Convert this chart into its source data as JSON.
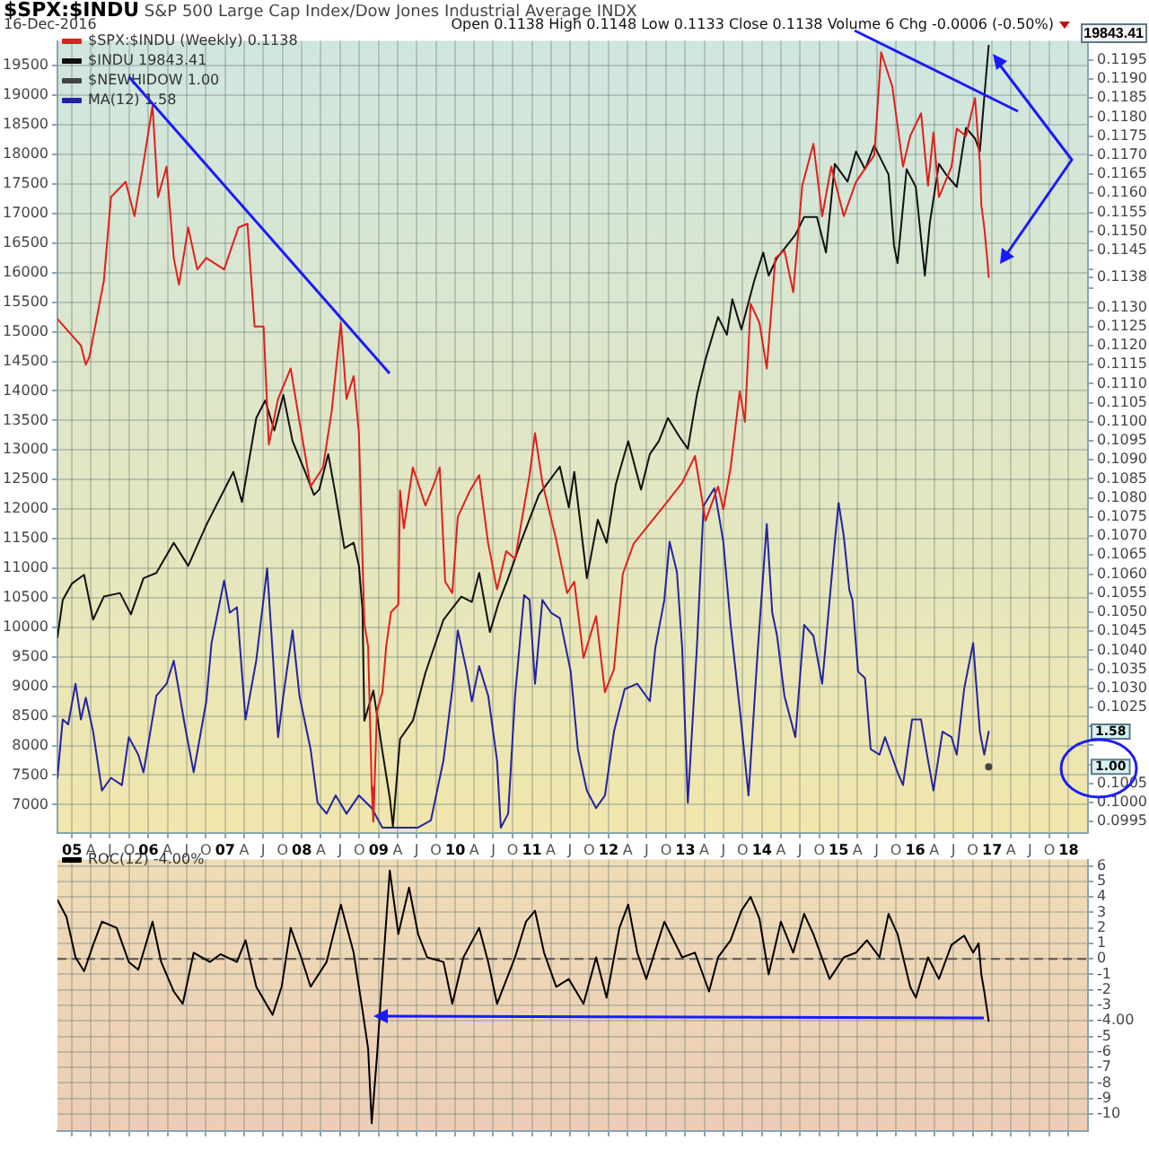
{
  "chart_data": [
    {
      "type": "line",
      "title": "$SPX:$INDU",
      "subtitle": "S&P 500 Large Cap Index/Dow Jones Industrial Average INDX",
      "annotations": [
        "16-Dec-2016",
        "Open 0.1138 High 0.1148 Low 0.1133 Close 0.1138 Volume 6 Chg -0.0006 (-0.50%)",
        "19843.41"
      ],
      "xlim": [
        "2004-10-24",
        "2018-04-03"
      ],
      "xticks": [
        {
          "value": "2005-01-01",
          "label": "05"
        },
        {
          "value": "2005-04-01",
          "label": "A"
        },
        {
          "value": "2005-07-01",
          "label": "J"
        },
        {
          "value": "2005-10-01",
          "label": "O"
        },
        {
          "value": "2006-01-01",
          "label": "06"
        },
        {
          "value": "2006-04-01",
          "label": "A"
        },
        {
          "value": "2006-07-01",
          "label": "J"
        },
        {
          "value": "2006-10-01",
          "label": "O"
        },
        {
          "value": "2007-01-01",
          "label": "07"
        },
        {
          "value": "2007-04-01",
          "label": "A"
        },
        {
          "value": "2007-07-01",
          "label": "J"
        },
        {
          "value": "2007-10-01",
          "label": "O"
        },
        {
          "value": "2008-01-01",
          "label": "08"
        },
        {
          "value": "2008-04-01",
          "label": "A"
        },
        {
          "value": "2008-07-01",
          "label": "J"
        },
        {
          "value": "2008-10-01",
          "label": "O"
        },
        {
          "value": "2009-01-01",
          "label": "09"
        },
        {
          "value": "2009-04-01",
          "label": "A"
        },
        {
          "value": "2009-07-01",
          "label": "J"
        },
        {
          "value": "2009-10-01",
          "label": "O"
        },
        {
          "value": "2010-01-01",
          "label": "10"
        },
        {
          "value": "2010-04-01",
          "label": "A"
        },
        {
          "value": "2010-07-01",
          "label": "J"
        },
        {
          "value": "2010-10-01",
          "label": "O"
        },
        {
          "value": "2011-01-01",
          "label": "11"
        },
        {
          "value": "2011-04-01",
          "label": "A"
        },
        {
          "value": "2011-07-01",
          "label": "J"
        },
        {
          "value": "2011-10-01",
          "label": "O"
        },
        {
          "value": "2012-01-01",
          "label": "12"
        },
        {
          "value": "2012-04-01",
          "label": "A"
        },
        {
          "value": "2012-07-01",
          "label": "J"
        },
        {
          "value": "2012-10-01",
          "label": "O"
        },
        {
          "value": "2013-01-01",
          "label": "13"
        },
        {
          "value": "2013-04-01",
          "label": "A"
        },
        {
          "value": "2013-07-01",
          "label": "J"
        },
        {
          "value": "2013-10-01",
          "label": "O"
        },
        {
          "value": "2014-01-01",
          "label": "14"
        },
        {
          "value": "2014-04-01",
          "label": "A"
        },
        {
          "value": "2014-07-01",
          "label": "J"
        },
        {
          "value": "2014-10-01",
          "label": "O"
        },
        {
          "value": "2015-01-01",
          "label": "15"
        },
        {
          "value": "2015-04-01",
          "label": "A"
        },
        {
          "value": "2015-07-01",
          "label": "J"
        },
        {
          "value": "2015-10-01",
          "label": "O"
        },
        {
          "value": "2016-01-01",
          "label": "16"
        },
        {
          "value": "2016-04-01",
          "label": "A"
        },
        {
          "value": "2016-07-01",
          "label": "J"
        },
        {
          "value": "2016-10-01",
          "label": "O"
        },
        {
          "value": "2017-01-01",
          "label": "17"
        },
        {
          "value": "2017-04-01",
          "label": "A"
        },
        {
          "value": "2017-07-01",
          "label": "J"
        },
        {
          "value": "2017-10-01",
          "label": "O"
        },
        {
          "value": "2018-01-01",
          "label": "18"
        }
      ],
      "ylim": [
        6520,
        19920
      ],
      "yticks": [
        7000,
        7500,
        8000,
        8500,
        9000,
        9500,
        10000,
        10500,
        11000,
        11500,
        12000,
        12500,
        13000,
        13500,
        14000,
        14500,
        15000,
        15500,
        16000,
        16500,
        17000,
        17500,
        18000,
        18500,
        19000,
        19500
      ],
      "y2lim": [
        0.0992,
        0.12
      ],
      "y2ticks": [
        0.0995,
        {
          "value": 0.1,
          "label": "0.1000"
        },
        0.1005,
        {
          "value": 0.101,
          "label": null
        },
        {
          "value": 0.1015,
          "label": null
        },
        {
          "value": 0.102,
          "label": null
        },
        0.1025,
        {
          "value": 0.103,
          "label": "0.1030"
        },
        0.1035,
        {
          "value": 0.104,
          "label": "0.1040"
        },
        0.1045,
        {
          "value": 0.105,
          "label": "0.1050"
        },
        0.1055,
        {
          "value": 0.106,
          "label": "0.1060"
        },
        0.1065,
        {
          "value": 0.107,
          "label": "0.1070"
        },
        0.1075,
        {
          "value": 0.108,
          "label": "0.1080"
        },
        0.1085,
        {
          "value": 0.109,
          "label": "0.1090"
        },
        0.1095,
        {
          "value": 0.11,
          "label": "0.1100"
        },
        0.1105,
        {
          "value": 0.111,
          "label": "0.1110"
        },
        0.1115,
        {
          "value": 0.112,
          "label": "0.1120"
        },
        0.1125,
        {
          "value": 0.113,
          "label": "0.1130"
        },
        {
          "value": 0.1135,
          "label": null
        },
        {
          "value": 0.1138,
          "label": "0.1138"
        },
        {
          "value": 0.114,
          "label": null
        },
        0.1145,
        {
          "value": 0.115,
          "label": "0.1150"
        },
        0.1155,
        {
          "value": 0.116,
          "label": "0.1160"
        },
        0.1165,
        {
          "value": 0.117,
          "label": "0.1170"
        },
        0.1175,
        {
          "value": 0.118,
          "label": "0.1180"
        },
        0.1185,
        {
          "value": 0.119,
          "label": "0.1190"
        },
        0.1195
      ],
      "y3lim": [
        -0.09,
        12.96
      ],
      "y3ticks": [
        {
          "value": 1.58,
          "label": "1.58"
        },
        {
          "value": 1,
          "label": "1.00"
        }
      ],
      "grid": true,
      "legend": "top left",
      "marker": "none",
      "series": [
        {
          "name": "$SPX:$INDU (Weekly) 0.1138",
          "color": "#e0201c",
          "axis": "y2",
          "x": [
            "2004-10-24",
            "2005-02-13",
            "2005-03-08",
            "2005-03-25",
            "2005-06-02",
            "2005-07-06",
            "2005-09-14",
            "2005-10-26",
            "2005-12-08",
            "2006-01-20",
            "2006-02-15",
            "2006-03-28",
            "2006-05-01",
            "2006-05-26",
            "2006-07-09",
            "2006-08-21",
            "2006-10-03",
            "2006-12-27",
            "2007-03-05",
            "2007-04-17",
            "2007-05-21",
            "2007-07-03",
            "2007-07-28",
            "2007-09-10",
            "2007-11-09",
            "2007-12-21",
            "2008-02-12",
            "2008-04-11",
            "2008-05-23",
            "2008-07-05",
            "2008-08-01",
            "2008-09-04",
            "2008-09-29",
            "2008-10-25",
            "2008-11-12",
            "2008-11-29",
            "2008-12-07",
            "2008-12-24",
            "2009-01-19",
            "2009-02-06",
            "2009-03-01",
            "2009-04-05",
            "2009-04-13",
            "2009-05-01",
            "2009-06-13",
            "2009-08-12",
            "2009-09-24",
            "2009-10-19",
            "2009-11-14",
            "2009-12-18",
            "2010-01-13",
            "2010-03-13",
            "2010-04-25",
            "2010-06-07",
            "2010-07-19",
            "2010-09-01",
            "2010-10-13",
            "2010-12-21",
            "2011-01-16",
            "2011-02-20",
            "2011-04-27",
            "2011-06-18",
            "2011-07-22",
            "2011-09-04",
            "2011-11-03",
            "2011-12-15",
            "2012-01-27",
            "2012-03-09",
            "2012-04-30",
            "2012-09-23",
            "2012-12-17",
            "2013-02-16",
            "2013-04-07",
            "2013-06-06",
            "2013-07-01",
            "2013-08-05",
            "2013-09-17",
            "2013-10-12",
            "2013-11-08",
            "2013-12-20",
            "2014-01-24",
            "2014-03-06",
            "2014-04-18",
            "2014-05-30",
            "2014-07-12",
            "2014-09-03",
            "2014-10-15",
            "2014-11-27",
            "2015-01-26",
            "2015-03-25",
            "2015-06-20",
            "2015-07-23",
            "2015-09-14",
            "2015-11-04",
            "2015-12-08",
            "2016-01-29",
            "2016-03-02",
            "2016-03-28",
            "2016-04-23",
            "2016-06-22",
            "2016-07-17",
            "2016-08-30",
            "2016-10-12",
            "2016-11-04",
            "2016-11-11",
            "2016-11-25",
            "2016-12-09",
            "2016-12-16"
          ],
          "values": [
            0.1127,
            0.112,
            0.1115,
            0.1117,
            0.1137,
            0.1159,
            0.1163,
            0.1154,
            0.1168,
            0.1183,
            0.1159,
            0.1167,
            0.1143,
            0.1136,
            0.1151,
            0.114,
            0.1143,
            0.114,
            0.1151,
            0.1152,
            0.1125,
            0.1125,
            0.1094,
            0.1106,
            0.1114,
            0.11,
            0.1083,
            0.1088,
            0.1103,
            0.1126,
            0.1106,
            0.1112,
            0.1097,
            0.1047,
            0.1041,
            0.1004,
            0.0995,
            0.1024,
            0.1029,
            0.1041,
            0.105,
            0.1052,
            0.1082,
            0.1072,
            0.1088,
            0.1078,
            0.1084,
            0.1088,
            0.1058,
            0.1055,
            0.1075,
            0.1082,
            0.1086,
            0.1068,
            0.1056,
            0.1066,
            0.1064,
            0.1086,
            0.1097,
            0.1084,
            0.1069,
            0.1055,
            0.1058,
            0.1038,
            0.1049,
            0.1029,
            0.1035,
            0.106,
            0.1068,
            0.1078,
            0.1084,
            0.1091,
            0.1074,
            0.1083,
            0.1077,
            0.1088,
            0.1108,
            0.11,
            0.1131,
            0.1126,
            0.1114,
            0.1143,
            0.1145,
            0.1134,
            0.1162,
            0.1173,
            0.1154,
            0.1167,
            0.1154,
            0.1163,
            0.117,
            0.1197,
            0.1188,
            0.1167,
            0.1175,
            0.1181,
            0.1162,
            0.1176,
            0.1159,
            0.1167,
            0.1177,
            0.1175,
            0.1185,
            0.1168,
            0.1157,
            0.1151,
            0.1143,
            0.1138
          ]
        },
        {
          "name": "$INDU 19843.41",
          "color": "#111111",
          "x": [
            "2004-10-24",
            "2004-11-18",
            "2005-01-01",
            "2005-02-28",
            "2005-04-12",
            "2005-06-02",
            "2005-08-18",
            "2005-10-09",
            "2005-12-08",
            "2006-02-07",
            "2006-05-01",
            "2006-07-09",
            "2006-10-03",
            "2006-11-15",
            "2007-02-09",
            "2007-03-22",
            "2007-05-29",
            "2007-07-11",
            "2007-08-23",
            "2007-10-05",
            "2007-11-18",
            "2008-01-17",
            "2008-02-28",
            "2008-03-24",
            "2008-05-06",
            "2008-06-10",
            "2008-07-22",
            "2008-09-04",
            "2008-09-29",
            "2008-10-16",
            "2008-10-25",
            "2008-12-07",
            "2009-01-19",
            "2009-02-23",
            "2009-03-10",
            "2009-04-13",
            "2009-06-13",
            "2009-08-12",
            "2009-11-06",
            "2010-01-30",
            "2010-03-21",
            "2010-04-25",
            "2010-06-15",
            "2010-07-28",
            "2010-09-10",
            "2010-11-08",
            "2011-02-03",
            "2011-05-14",
            "2011-06-26",
            "2011-07-22",
            "2011-09-20",
            "2011-11-11",
            "2011-12-23",
            "2012-02-05",
            "2012-04-04",
            "2012-06-04",
            "2012-07-16",
            "2012-08-28",
            "2012-10-10",
            "2012-12-01",
            "2013-01-13",
            "2013-02-25",
            "2013-04-07",
            "2013-06-06",
            "2013-07-18",
            "2013-08-13",
            "2013-09-25",
            "2013-11-25",
            "2014-01-07",
            "2014-02-02",
            "2014-03-14",
            "2014-06-09",
            "2014-07-21",
            "2014-09-20",
            "2014-11-02",
            "2014-12-14",
            "2015-02-13",
            "2015-03-25",
            "2015-05-07",
            "2015-06-20",
            "2015-08-02",
            "2015-08-27",
            "2015-09-22",
            "2015-10-09",
            "2015-11-21",
            "2016-01-04",
            "2016-02-16",
            "2016-03-11",
            "2016-04-23",
            "2016-05-27",
            "2016-07-17",
            "2016-08-30",
            "2016-10-12",
            "2016-11-04",
            "2016-11-18",
            "2016-12-02",
            "2016-12-16"
          ],
          "values": [
            9830,
            10460,
            10740,
            10890,
            10130,
            10520,
            10580,
            10220,
            10830,
            10920,
            11430,
            11040,
            11730,
            12030,
            12630,
            12120,
            13540,
            13840,
            13330,
            13930,
            13150,
            12630,
            12240,
            12330,
            12930,
            12240,
            11340,
            11430,
            11040,
            10310,
            8420,
            8930,
            7900,
            7120,
            6630,
            8110,
            8420,
            9230,
            10130,
            10520,
            10430,
            10920,
            9920,
            10430,
            10830,
            11430,
            12240,
            12720,
            12030,
            12630,
            10830,
            11820,
            11430,
            12420,
            13150,
            12330,
            12930,
            13150,
            13540,
            13240,
            13020,
            13930,
            14530,
            15250,
            14950,
            15550,
            15040,
            15860,
            16340,
            15950,
            16250,
            16640,
            16940,
            16940,
            16340,
            17840,
            17540,
            18050,
            17750,
            18150,
            17840,
            17660,
            16460,
            16160,
            17750,
            17450,
            15950,
            16850,
            17840,
            17660,
            17450,
            18450,
            18270,
            18050,
            18660,
            19260,
            19840
          ]
        },
        {
          "name": "$NEWHIDOW 1.00",
          "color": "#444444",
          "axis": "y3",
          "marker": "circle",
          "x": [
            "2016-12-16"
          ],
          "values": [
            1
          ]
        },
        {
          "name": "MA(12) 1.58",
          "color": "#2323a0",
          "axis": "y3",
          "x": [
            "2004-10-24",
            "2004-11-18",
            "2004-12-14",
            "2005-01-18",
            "2005-02-13",
            "2005-03-08",
            "2005-04-12",
            "2005-05-24",
            "2005-07-06",
            "2005-08-27",
            "2005-09-29",
            "2005-11-13",
            "2005-12-08",
            "2006-02-07",
            "2006-03-28",
            "2006-05-01",
            "2006-06-22",
            "2006-08-04",
            "2006-10-03",
            "2006-10-28",
            "2006-12-27",
            "2007-01-23",
            "2007-02-26",
            "2007-04-08",
            "2007-05-29",
            "2007-07-20",
            "2007-08-23",
            "2007-09-10",
            "2007-10-05",
            "2007-11-18",
            "2007-12-21",
            "2008-02-12",
            "2008-03-16",
            "2008-04-28",
            "2008-06-10",
            "2008-08-01",
            "2008-09-29",
            "2008-11-29",
            "2009-01-19",
            "2009-07-08",
            "2009-09-07",
            "2009-11-06",
            "2009-12-18",
            "2010-01-13",
            "2010-02-25",
            "2010-03-21",
            "2010-04-25",
            "2010-06-07",
            "2010-07-19",
            "2010-08-06",
            "2010-09-10",
            "2010-10-13",
            "2010-11-25",
            "2010-12-21",
            "2011-01-16",
            "2011-02-20",
            "2011-04-02",
            "2011-05-14",
            "2011-07-05",
            "2011-08-08",
            "2011-09-20",
            "2011-11-03",
            "2011-12-15",
            "2012-01-27",
            "2012-03-18",
            "2012-05-17",
            "2012-07-16",
            "2012-08-11",
            "2012-09-23",
            "2012-10-18",
            "2012-11-22",
            "2012-12-17",
            "2013-01-13",
            "2013-02-25",
            "2013-03-29",
            "2013-05-19",
            "2013-07-01",
            "2013-08-05",
            "2013-09-25",
            "2013-10-29",
            "2013-12-11",
            "2014-01-24",
            "2014-02-19",
            "2014-03-14",
            "2014-04-18",
            "2014-06-09",
            "2014-07-21",
            "2014-09-03",
            "2014-10-15",
            "2014-12-14",
            "2015-01-01",
            "2015-01-26",
            "2015-02-21",
            "2015-03-08",
            "2015-04-04",
            "2015-05-07",
            "2015-06-03",
            "2015-07-15",
            "2015-08-10",
            "2015-10-09",
            "2015-11-04",
            "2015-12-17",
            "2016-01-29",
            "2016-03-02",
            "2016-03-28",
            "2016-05-10",
            "2016-06-22",
            "2016-07-17",
            "2016-08-21",
            "2016-10-03",
            "2016-11-04",
            "2016-11-25",
            "2016-12-16"
          ],
          "values": [
            0.82,
            1.78,
            1.7,
            2.37,
            1.78,
            2.14,
            1.58,
            0.61,
            0.82,
            0.7,
            1.49,
            1.2,
            0.91,
            2.17,
            2.37,
            2.75,
            1.7,
            0.91,
            2.08,
            3.04,
            4.07,
            3.54,
            3.63,
            1.78,
            2.75,
            4.27,
            2.46,
            1.49,
            2.17,
            3.25,
            2.17,
            1.29,
            0.41,
            0.23,
            0.53,
            0.23,
            0.53,
            0.32,
            0,
            0,
            0.12,
            1.11,
            2.28,
            3.25,
            2.57,
            2.08,
            2.66,
            2.17,
            1.11,
            0,
            0.23,
            2.17,
            3.83,
            3.75,
            2.37,
            3.75,
            3.54,
            3.45,
            2.57,
            1.29,
            0.61,
            0.32,
            0.53,
            1.58,
            2.28,
            2.37,
            2.08,
            2.96,
            3.75,
            4.71,
            4.21,
            2.96,
            0.41,
            2.96,
            5.3,
            5.59,
            4.71,
            3.34,
            1.7,
            0.53,
            2.87,
            5.0,
            3.54,
            3.16,
            2.17,
            1.49,
            3.34,
            3.16,
            2.37,
            4.71,
            5.35,
            4.8,
            3.92,
            3.75,
            2.57,
            2.46,
            1.29,
            1.2,
            1.49,
            0.91,
            0.7,
            1.78,
            1.78,
            1.11,
            0.61,
            1.58,
            1.49,
            1.2,
            2.28,
            3.04,
            1.58,
            1.2,
            1.58
          ]
        }
      ]
    },
    {
      "type": "line",
      "tick_labels": "y",
      "xlim": [
        "2004-10-24",
        "2018-04-03"
      ],
      "xticks": [
        "2005-01-01",
        "2005-04-01",
        "2005-07-01",
        "2005-10-01",
        "2006-01-01",
        "2006-04-01",
        "2006-07-01",
        "2006-10-01",
        "2007-01-01",
        "2007-04-01",
        "2007-07-01",
        "2007-10-01",
        "2008-01-01",
        "2008-04-01",
        "2008-07-01",
        "2008-10-01",
        "2009-01-01",
        "2009-04-01",
        "2009-07-01",
        "2009-10-01",
        "2010-01-01",
        "2010-04-01",
        "2010-07-01",
        "2010-10-01",
        "2011-01-01",
        "2011-04-01",
        "2011-07-01",
        "2011-10-01",
        "2012-01-01",
        "2012-04-01",
        "2012-07-01",
        "2012-10-01",
        "2013-01-01",
        "2013-04-01",
        "2013-07-01",
        "2013-10-01",
        "2014-01-01",
        "2014-04-01",
        "2014-07-01",
        "2014-10-01",
        "2015-01-01",
        "2015-04-01",
        "2015-07-01",
        "2015-10-01",
        "2016-01-01",
        "2016-04-01",
        "2016-07-01",
        "2016-10-01",
        "2017-01-01",
        "2017-04-01",
        "2017-07-01",
        "2017-10-01",
        "2018-01-01"
      ],
      "ylim": [
        -11.1,
        6.4
      ],
      "yticks": [
        -10,
        -9,
        -8,
        -7,
        -6,
        -5,
        {
          "value": -4,
          "label": "-4.00"
        },
        -3,
        -2,
        -1,
        0,
        1,
        2,
        3,
        4,
        5,
        6
      ],
      "grid": true,
      "legend": "top left",
      "marker": "none",
      "ref_lines": [
        {
          "axis": "y",
          "value": 0,
          "color": "#555555",
          "line_style": "dashed"
        }
      ],
      "series": [
        {
          "name": "ROC(12) -4.00%",
          "color": "#000000",
          "x": [
            "2004-10-24",
            "2004-12-06",
            "2005-01-18",
            "2005-02-28",
            "2005-04-12",
            "2005-05-24",
            "2005-08-02",
            "2005-09-29",
            "2005-11-13",
            "2006-01-20",
            "2006-03-02",
            "2006-05-01",
            "2006-06-13",
            "2006-08-04",
            "2006-10-20",
            "2006-12-10",
            "2007-02-26",
            "2007-04-08",
            "2007-05-29",
            "2007-08-15",
            "2007-09-27",
            "2007-11-09",
            "2007-12-29",
            "2008-02-12",
            "2008-04-28",
            "2008-07-05",
            "2008-09-04",
            "2008-10-16",
            "2008-11-12",
            "2008-11-29",
            "2008-12-24",
            "2009-01-19",
            "2009-02-23",
            "2009-04-05",
            "2009-05-26",
            "2009-07-08",
            "2009-08-20",
            "2009-11-06",
            "2009-12-18",
            "2010-02-09",
            "2010-04-25",
            "2010-06-07",
            "2010-07-19",
            "2010-10-13",
            "2010-12-04",
            "2011-01-16",
            "2011-02-28",
            "2011-04-27",
            "2011-06-26",
            "2011-09-04",
            "2011-11-03",
            "2011-12-23",
            "2012-02-22",
            "2012-04-04",
            "2012-05-17",
            "2012-06-29",
            "2012-09-23",
            "2012-12-17",
            "2013-02-16",
            "2013-04-24",
            "2013-06-06",
            "2013-08-05",
            "2013-09-25",
            "2013-11-08",
            "2013-12-20",
            "2014-02-02",
            "2014-04-01",
            "2014-05-30",
            "2014-07-21",
            "2014-09-03",
            "2014-11-19",
            "2015-01-26",
            "2015-03-25",
            "2015-05-16",
            "2015-07-15",
            "2015-08-27",
            "2015-10-09",
            "2015-12-08",
            "2016-01-04",
            "2016-03-02",
            "2016-04-23",
            "2016-06-22",
            "2016-08-21",
            "2016-10-03",
            "2016-10-29",
            "2016-11-11",
            "2016-11-25",
            "2016-12-16"
          ],
          "values": [
            3.8,
            2.7,
            0.1,
            -0.8,
            0.9,
            2.4,
            2.0,
            -0.2,
            -0.7,
            2.4,
            -0.2,
            -2.1,
            -2.9,
            0.4,
            -0.2,
            0.3,
            -0.2,
            1.2,
            -1.8,
            -3.6,
            -1.8,
            2.0,
            0.1,
            -1.8,
            -0.2,
            3.5,
            0.4,
            -3.3,
            -5.8,
            -10.6,
            -6.3,
            -1.0,
            5.7,
            1.6,
            4.6,
            1.6,
            0.1,
            -0.2,
            -2.9,
            0.1,
            2.0,
            -0.2,
            -2.9,
            0.1,
            2.4,
            3.1,
            0.4,
            -1.8,
            -1.3,
            -2.9,
            0.1,
            -2.5,
            2.0,
            3.5,
            0.4,
            -1.3,
            2.4,
            0.1,
            0.4,
            -2.1,
            0.1,
            1.2,
            3.1,
            4.0,
            2.6,
            -1.0,
            2.4,
            0.4,
            2.9,
            1.6,
            -1.3,
            0.1,
            0.4,
            1.2,
            0.1,
            2.9,
            1.6,
            -1.8,
            -2.5,
            0.1,
            -1.3,
            0.9,
            1.5,
            0.4,
            1.0,
            -1.0,
            -2.1,
            -4.0
          ]
        }
      ]
    }
  ]
}
